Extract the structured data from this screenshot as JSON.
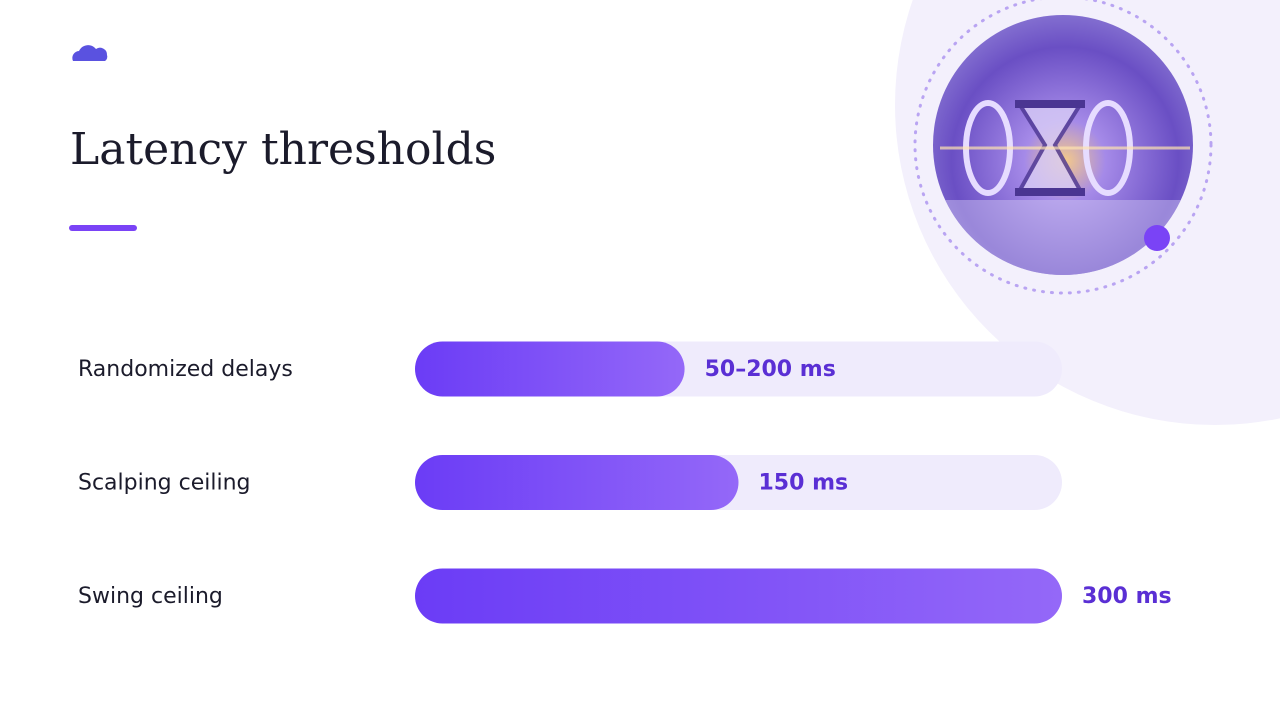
{
  "chart_data": {
    "type": "bar",
    "orientation": "horizontal",
    "title": "Latency thresholds",
    "categories": [
      "Randomized delays",
      "Scalping ceiling",
      "Swing ceiling"
    ],
    "values": [
      125,
      150,
      300
    ],
    "value_labels": [
      "50–200 ms",
      "150 ms",
      "300 ms"
    ],
    "xlim": [
      0,
      300
    ],
    "color": "#6a3cf5"
  }
}
